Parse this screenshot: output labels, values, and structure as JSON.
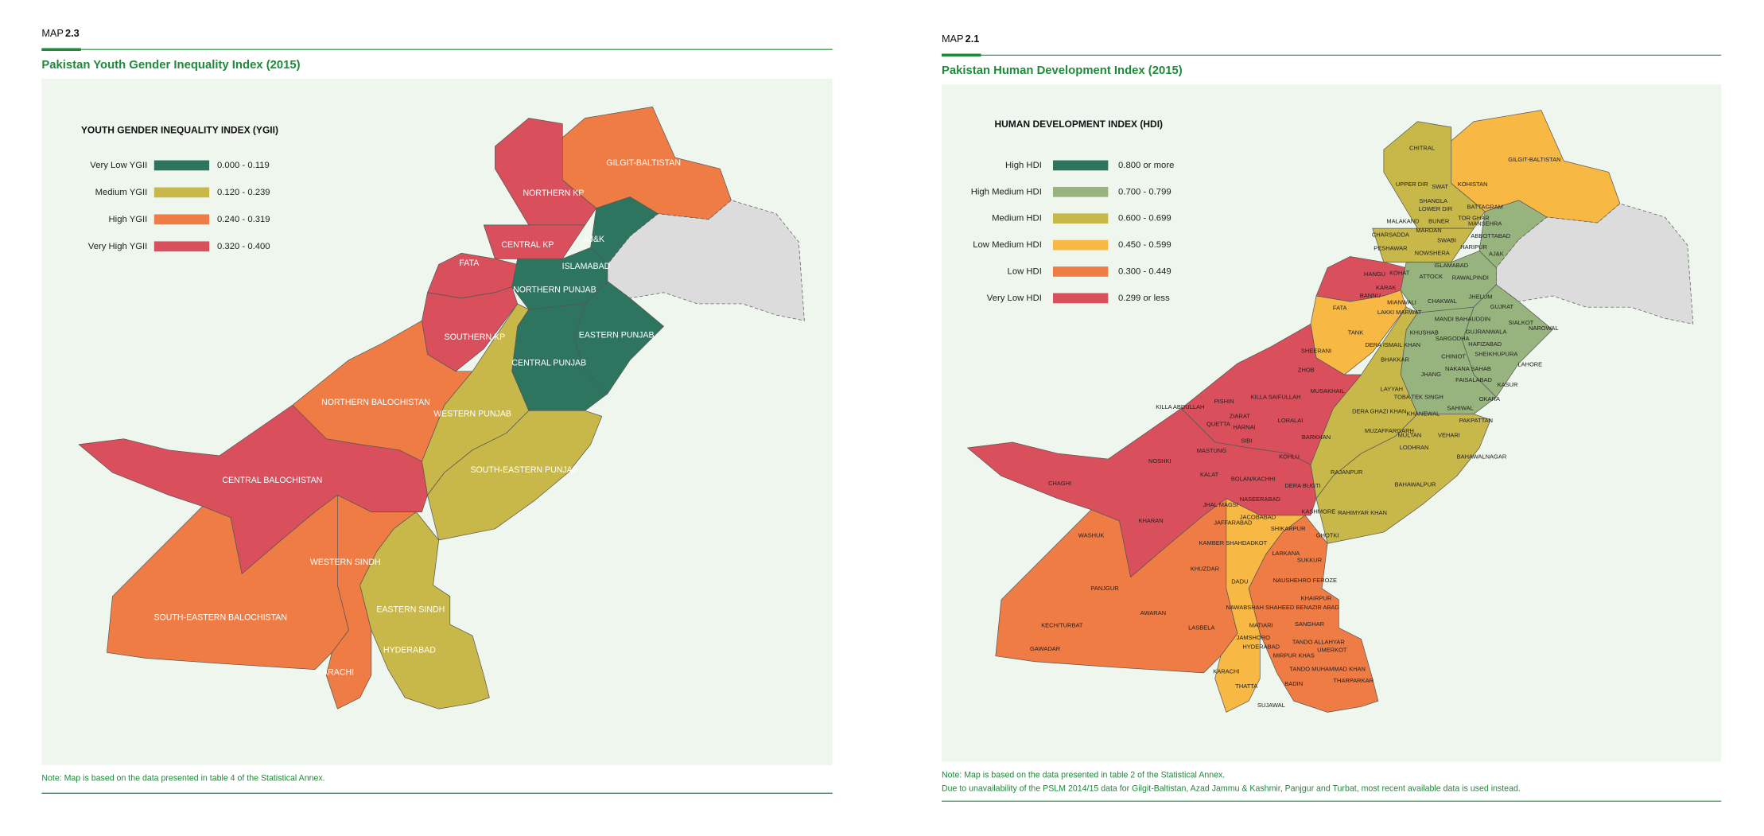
{
  "maps": [
    {
      "label": "MAP",
      "number": "2.3",
      "title": "Pakistan Youth Gender Inequality Index (2015)",
      "legend": {
        "title": "YOUTH GENDER INEQUALITY INDEX (YGII)",
        "items": [
          {
            "label": "Very Low YGII",
            "range": "0.000 - 0.119",
            "color": "#2e7560"
          },
          {
            "label": "Medium YGII",
            "range": "0.120 - 0.239",
            "color": "#c8b84a"
          },
          {
            "label": "High YGII",
            "range": "0.240 - 0.319",
            "color": "#ef7c45"
          },
          {
            "label": "Very High YGII",
            "range": "0.320 - 0.400",
            "color": "#d94f5c"
          }
        ]
      },
      "regions": [
        "GILGIT-BALTISTAN",
        "NORTHERN KP",
        "CENTRAL KP",
        "AJ&K",
        "ISLAMABAD",
        "FATA",
        "NORTHERN PUNJAB",
        "EASTERN PUNJAB",
        "CENTRAL PUNJAB",
        "SOUTHERN KP",
        "NORTHERN BALOCHISTAN",
        "WESTERN PUNJAB",
        "SOUTH-EASTERN PUNJAB",
        "CENTRAL BALOCHISTAN",
        "WESTERN SINDH",
        "SOUTH-EASTERN BALOCHISTAN",
        "EASTERN SINDH",
        "HYDERABAD",
        "KARACHI"
      ],
      "notes": [
        "Note: Map is based on the data presented in table 4 of the Statistical Annex."
      ]
    },
    {
      "label": "MAP",
      "number": "2.1",
      "title": "Pakistan Human Development Index (2015)",
      "legend": {
        "title": "HUMAN DEVELOPMENT INDEX (HDI)",
        "items": [
          {
            "label": "High HDI",
            "range": "0.800 or more",
            "color": "#2e7560"
          },
          {
            "label": "High Medium HDI",
            "range": "0.700 - 0.799",
            "color": "#98b47e"
          },
          {
            "label": "Medium HDI",
            "range": "0.600 - 0.699",
            "color": "#c8b84a"
          },
          {
            "label": "Low Medium HDI",
            "range": "0.450 - 0.599",
            "color": "#f8b844"
          },
          {
            "label": "Low HDI",
            "range": "0.300 - 0.449",
            "color": "#ef7c45"
          },
          {
            "label": "Very Low HDI",
            "range": "0.299 or less",
            "color": "#d94f5c"
          }
        ]
      },
      "regions": [
        "CHITRAL",
        "GILGIT-BALTISTAN",
        "UPPER DIR",
        "KOHISTAN",
        "SWAT",
        "SHANGLA",
        "BATTAGRAM",
        "LOWER DIR",
        "BUNER",
        "TOR GHAR",
        "MALAKAND",
        "MANSEHRA",
        "CHARSADDA",
        "MARDAN",
        "ABBOTTABAD",
        "SWABI",
        "HARIPUR",
        "PESHAWAR",
        "NOWSHERA",
        "ISLAMABAD",
        "AJ&K",
        "HANGU",
        "KOHAT",
        "ATTOCK",
        "RAWALPINDI",
        "BANNU",
        "KARAK",
        "CHAKWAL",
        "JHELUM",
        "LAKKI MARWAT",
        "MIANWALI",
        "GUJRAT",
        "FATA",
        "TANK",
        "KHUSHAB",
        "MANDI BAHAUDDIN",
        "SIALKOT",
        "NAROWAL",
        "GUJRANWALA",
        "DERA ISMAIL KHAN",
        "SARGODHA",
        "HAFIZABAD",
        "SHEERANI",
        "BHAKKAR",
        "CHINIOT",
        "SHEIKHUPURA",
        "LAHORE",
        "ZHOB",
        "JHANG",
        "NAKANA SAHAB",
        "FAISALABAD",
        "KASUR",
        "MUSAKHAIL",
        "LAYYAH",
        "TOBA TEK SINGH",
        "OKARA",
        "KILLA ABDULLAH",
        "PISHIN",
        "KILLA SAIFULLAH",
        "SAHIWAL",
        "QUETTA",
        "ZIARAT",
        "LORALAI",
        "DERA GHAZI KHAN",
        "KHANEWAL",
        "PAKPATTAN",
        "HARNAI",
        "MUZAFFARGARH",
        "MULTAN",
        "VEHARI",
        "BARKHAN",
        "SIBI",
        "LODHRAN",
        "BAHAWALNAGAR",
        "MASTUNG",
        "KOHLU",
        "NOSHKI",
        "RAJANPUR",
        "KALAT",
        "BOLAN/KACHHI",
        "DERA BUGTI",
        "BAHAWALPUR",
        "CHAGHI",
        "NASEERABAD",
        "JHAL MAGSI",
        "JACOBABAD",
        "KASHMORE",
        "RAHIMYAR KHAN",
        "JAFFARABAD",
        "SHIKARPUR",
        "KHARAN",
        "WASHUK",
        "KAMBER SHAHDADKOT",
        "GHOTKI",
        "LARKANA",
        "KHUZDAR",
        "SUKKUR",
        "DADU",
        "NAUSHEHRO FEROZE",
        "PANJGUR",
        "KHAIRPUR",
        "NAWABSHAH SHAHEED BENAZIR ABAD",
        "AWARAN",
        "MATIARI",
        "SANGHAR",
        "JAMSHORO",
        "TANDO ALLAHYAR",
        "HYDERABAD",
        "UMERKOT",
        "LASBELA",
        "KECH/TURBAT",
        "MIRPUR KHAS",
        "GAWADAR",
        "KARACHI",
        "TANDO MUHAMMAD KHAN",
        "THATTA",
        "BADIN",
        "THARPARKAR",
        "SUJAWAL"
      ],
      "notes": [
        "Note: Map is based on the data presented in table 2 of the Statistical Annex.",
        "Due to unavailability of the PSLM 2014/15 data for Gilgit-Baltistan, Azad Jammu & Kashmir, Panjgur and Turbat, most recent available data is used instead."
      ]
    }
  ]
}
